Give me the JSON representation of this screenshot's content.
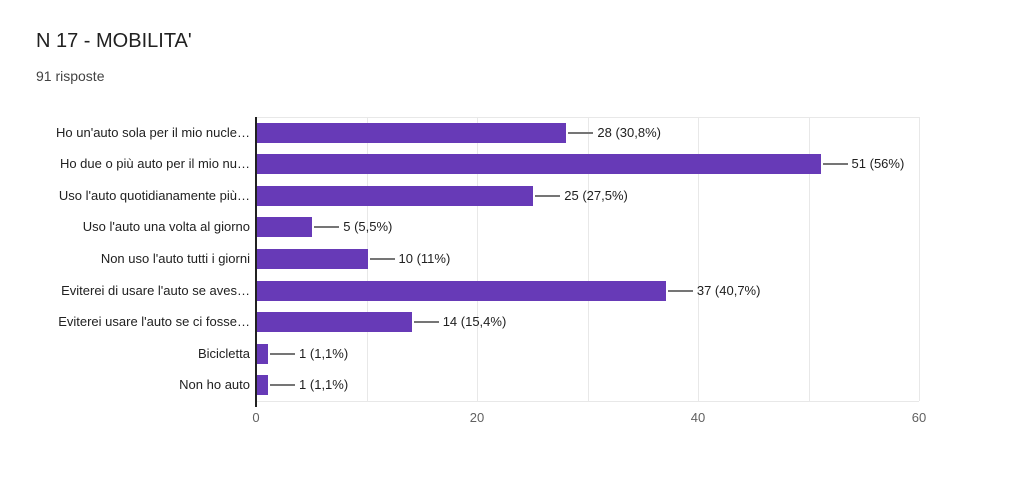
{
  "header": {
    "title": "N 17 - MOBILITA'",
    "subtitle": "91 risposte"
  },
  "chart_data": {
    "type": "bar",
    "orientation": "horizontal",
    "title": "N 17 - MOBILITA'",
    "subtitle": "91 risposte",
    "categories": [
      "Ho un'auto sola per il mio nucle…",
      "Ho due o più auto per il mio nu…",
      "Uso l'auto quotidianamente più…",
      "Uso l'auto una volta al giorno",
      "Non uso l'auto tutti i giorni",
      "Eviterei di usare l'auto se aves…",
      "Eviterei usare l'auto se ci fosse…",
      "Bicicletta",
      "Non ho auto"
    ],
    "values": [
      28,
      51,
      25,
      5,
      10,
      37,
      14,
      1,
      1
    ],
    "value_labels": [
      "28 (30,8%)",
      "51 (56%)",
      "25 (27,5%)",
      "5 (5,5%)",
      "10 (11%)",
      "37 (40,7%)",
      "14 (15,4%)",
      "1 (1,1%)",
      "1 (1,1%)"
    ],
    "xlabel": "",
    "ylabel": "",
    "xlim": [
      0,
      60
    ],
    "xtick_values": [
      0,
      20,
      40,
      60
    ],
    "xtick_labels": [
      "0",
      "20",
      "40",
      "60"
    ],
    "gridline_values": [
      10,
      20,
      30,
      40,
      50,
      60
    ],
    "grid": true,
    "legend": false,
    "colors": {
      "bar": "#673ab7",
      "axis_line": "#212121",
      "gridline": "#e8e8e8",
      "connector": "#757575",
      "label_text": "#212121",
      "tick_text": "#616161"
    }
  }
}
